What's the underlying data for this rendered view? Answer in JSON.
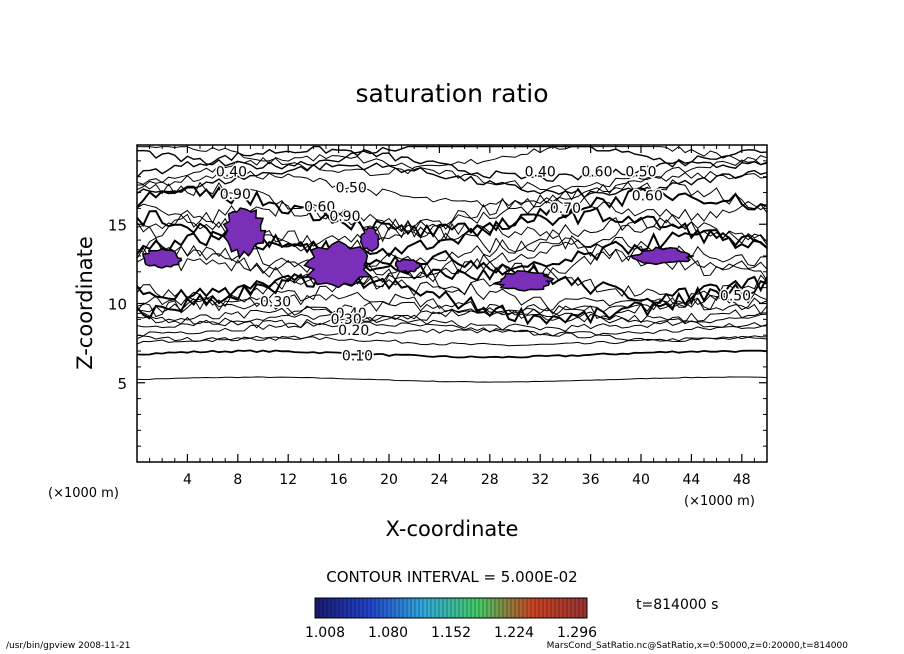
{
  "chart_data": {
    "type": "contour",
    "title": "saturation ratio",
    "xlabel": "X-coordinate",
    "ylabel": "Z-coordinate",
    "x_unit_left": "(×1000 m)",
    "x_unit_right": "(×1000 m)",
    "xlim": [
      0,
      50
    ],
    "ylim": [
      0,
      20
    ],
    "x_ticks": [
      "4",
      "8",
      "12",
      "16",
      "20",
      "24",
      "28",
      "32",
      "36",
      "40",
      "44",
      "48"
    ],
    "y_ticks": [
      "5",
      "10",
      "15"
    ],
    "contour_interval_text": "CONTOUR INTERVAL = 5.000E-02",
    "time_text": "t=814000 s",
    "colorbar": {
      "labels": [
        "1.008",
        "1.080",
        "1.152",
        "1.224",
        "1.296"
      ],
      "colors": [
        "#1a1a6e",
        "#2244cc",
        "#33aadd",
        "#44cc66",
        "#cc4422",
        "#993333"
      ]
    },
    "fill_color": "#7a2fb8",
    "contour_labels": [
      {
        "text": "0.40",
        "x": 7.5,
        "z": 18.0
      },
      {
        "text": "0.90",
        "x": 7.8,
        "z": 16.6
      },
      {
        "text": "0.50",
        "x": 17.0,
        "z": 17.0
      },
      {
        "text": "0.60",
        "x": 14.5,
        "z": 15.8
      },
      {
        "text": "0.90",
        "x": 16.5,
        "z": 15.2
      },
      {
        "text": "0.40",
        "x": 32.0,
        "z": 18.0
      },
      {
        "text": "0.60",
        "x": 36.5,
        "z": 18.0
      },
      {
        "text": "0.50",
        "x": 40.0,
        "z": 18.0
      },
      {
        "text": "0.60",
        "x": 40.5,
        "z": 16.5
      },
      {
        "text": "0.70",
        "x": 34.0,
        "z": 15.7
      },
      {
        "text": "0.30",
        "x": 11.0,
        "z": 9.8
      },
      {
        "text": "0.40",
        "x": 17.0,
        "z": 9.1
      },
      {
        "text": "0.30",
        "x": 16.6,
        "z": 8.7
      },
      {
        "text": "0.20",
        "x": 17.2,
        "z": 8.0
      },
      {
        "text": "0.10",
        "x": 17.5,
        "z": 6.4
      },
      {
        "text": "0.50",
        "x": 47.5,
        "z": 10.2
      }
    ],
    "supersaturated_regions": [
      {
        "x": [
          7.0,
          10.0
        ],
        "z": [
          13.0,
          16.2
        ]
      },
      {
        "x": [
          0.5,
          3.5
        ],
        "z": [
          12.3,
          13.4
        ]
      },
      {
        "x": [
          13.5,
          18.5
        ],
        "z": [
          11.0,
          13.8
        ]
      },
      {
        "x": [
          17.8,
          19.2
        ],
        "z": [
          13.3,
          14.8
        ]
      },
      {
        "x": [
          20.5,
          22.5
        ],
        "z": [
          12.0,
          12.8
        ]
      },
      {
        "x": [
          28.5,
          33.0
        ],
        "z": [
          10.8,
          12.0
        ]
      },
      {
        "x": [
          39.5,
          44.0
        ],
        "z": [
          12.5,
          13.5
        ]
      }
    ]
  },
  "footer": {
    "left": "/usr/bin/gpview  2008-11-21",
    "right": "MarsCond_SatRatio.nc@SatRatio,x=0:50000,z=0:20000,t=814000"
  }
}
